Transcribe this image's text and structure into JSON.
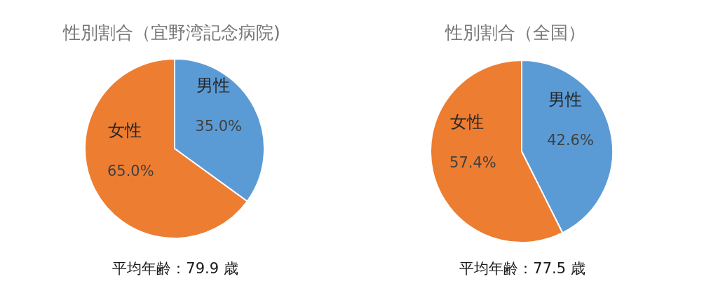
{
  "chart_data": [
    {
      "type": "pie",
      "title": "性別割合（宜野湾記念病院)",
      "categories": [
        "男性",
        "女性"
      ],
      "values": [
        35.0,
        65.0
      ],
      "value_labels": [
        "35.0%",
        "65.0%"
      ],
      "colors": [
        "#5b9bd5",
        "#ed7d31"
      ],
      "annotations": [
        "平均年齢：79.9 歳"
      ]
    },
    {
      "type": "pie",
      "title": "性別割合（全国）",
      "categories": [
        "男性",
        "女性"
      ],
      "values": [
        42.6,
        57.4
      ],
      "value_labels": [
        "42.6%",
        "57.4%"
      ],
      "colors": [
        "#5b9bd5",
        "#ed7d31"
      ],
      "annotations": [
        "平均年齢：77.5 歳"
      ]
    }
  ]
}
